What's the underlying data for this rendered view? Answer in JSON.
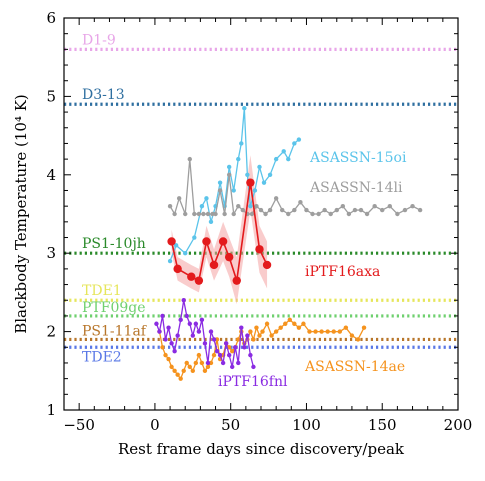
{
  "chart_data": {
    "type": "line",
    "title": "",
    "xlabel": "Rest frame days since discovery/peak",
    "ylabel": "Blackbody Temperature (10⁴ K)",
    "xlim": [
      -60,
      200
    ],
    "ylim": [
      1,
      6
    ],
    "xticks": [
      -50,
      0,
      50,
      100,
      150,
      200
    ],
    "yticks": [
      1,
      2,
      3,
      4,
      5,
      6
    ],
    "grid": false,
    "legend": "none",
    "reference_lines": [
      {
        "name": "D1-9",
        "y": 5.6,
        "color": "#e8a6e8"
      },
      {
        "name": "D3-13",
        "y": 4.9,
        "color": "#2f6fa0"
      },
      {
        "name": "PS1-10jh",
        "y": 3.0,
        "color": "#2a8a2a"
      },
      {
        "name": "TDE1",
        "y": 2.4,
        "color": "#e6e65c"
      },
      {
        "name": "PTF09ge",
        "y": 2.2,
        "color": "#6fd06f"
      },
      {
        "name": "PS1-11af",
        "y": 1.9,
        "color": "#b8762a"
      },
      {
        "name": "TDE2",
        "y": 1.8,
        "color": "#5a78e6"
      }
    ],
    "series": [
      {
        "name": "ASASSN-15oi",
        "color": "#5bc4ea",
        "x": [
          10,
          14,
          20,
          26,
          31,
          34,
          37,
          40,
          43,
          46,
          49,
          52,
          55,
          57,
          59,
          61,
          63,
          66,
          69,
          72,
          76,
          80,
          85,
          88,
          92,
          95
        ],
        "y": [
          2.9,
          3.1,
          3.0,
          3.2,
          3.6,
          3.7,
          3.4,
          3.6,
          3.9,
          3.6,
          4.1,
          3.8,
          4.2,
          4.4,
          4.85,
          4.0,
          3.6,
          3.8,
          4.1,
          3.9,
          4.0,
          4.2,
          4.3,
          4.2,
          4.4,
          4.45
        ]
      },
      {
        "name": "ASASSN-14li",
        "color": "#9e9e9e",
        "x": [
          10,
          13,
          16,
          20,
          23,
          26,
          29,
          32,
          35,
          38,
          40,
          43,
          46,
          49,
          52,
          55,
          58,
          61,
          64,
          67,
          70,
          73,
          76,
          80,
          84,
          88,
          92,
          96,
          100,
          104,
          108,
          112,
          116,
          120,
          124,
          128,
          132,
          136,
          140,
          145,
          150,
          155,
          160,
          165,
          170,
          175
        ],
        "y": [
          3.6,
          3.5,
          3.7,
          3.5,
          4.2,
          3.5,
          3.5,
          3.5,
          3.5,
          3.5,
          3.5,
          3.8,
          3.5,
          4.0,
          3.5,
          3.6,
          3.55,
          3.5,
          3.5,
          3.6,
          3.55,
          3.5,
          3.55,
          3.7,
          3.55,
          3.5,
          3.55,
          3.65,
          3.55,
          3.5,
          3.5,
          3.55,
          3.5,
          3.55,
          3.6,
          3.5,
          3.55,
          3.55,
          3.5,
          3.6,
          3.55,
          3.6,
          3.5,
          3.55,
          3.6,
          3.55
        ]
      },
      {
        "name": "iPTF16axa",
        "color": "#e31a1c",
        "band_color": "#f4a3a3",
        "x": [
          11,
          15,
          24,
          29,
          34,
          39,
          45,
          49,
          54,
          63,
          69,
          74
        ],
        "y": [
          3.15,
          2.8,
          2.7,
          2.65,
          3.15,
          2.85,
          3.15,
          2.95,
          2.65,
          3.9,
          3.05,
          2.85
        ]
      },
      {
        "name": "ASASSN-14ae",
        "color": "#f5931e",
        "x": [
          3,
          5,
          7,
          9,
          11,
          13,
          15,
          17,
          19,
          21,
          23,
          25,
          27,
          29,
          31,
          33,
          35,
          37,
          39,
          41,
          43,
          45,
          47,
          49,
          51,
          53,
          55,
          57,
          59,
          61,
          63,
          65,
          67,
          69,
          71,
          74,
          77,
          80,
          83,
          86,
          89,
          92,
          95,
          98,
          102,
          106,
          110,
          114,
          118,
          122,
          126,
          130,
          134,
          138
        ],
        "y": [
          2.0,
          1.8,
          1.7,
          1.65,
          1.55,
          1.5,
          1.45,
          1.4,
          1.5,
          1.6,
          1.55,
          1.5,
          1.6,
          1.7,
          1.6,
          1.5,
          1.55,
          1.6,
          1.7,
          1.9,
          1.65,
          1.7,
          1.85,
          1.8,
          1.75,
          1.8,
          1.9,
          2.0,
          1.85,
          1.9,
          2.0,
          1.9,
          2.05,
          1.95,
          2.0,
          2.1,
          1.95,
          2.0,
          2.05,
          2.1,
          2.15,
          2.1,
          2.05,
          2.1,
          2.0,
          2.0,
          2.0,
          2.0,
          2.0,
          2.0,
          2.05,
          1.95,
          1.9,
          2.05
        ]
      },
      {
        "name": "iPTF16fnl",
        "color": "#8a2be2",
        "x": [
          1,
          3,
          5,
          7,
          9,
          11,
          13,
          15,
          17,
          19,
          21,
          23,
          25,
          27,
          29,
          31,
          33,
          35,
          37,
          39,
          41,
          43,
          45,
          47,
          49,
          51,
          53,
          55,
          57,
          59,
          61,
          63,
          65
        ],
        "y": [
          2.1,
          2.0,
          2.2,
          1.9,
          2.05,
          1.85,
          1.75,
          1.95,
          2.15,
          2.4,
          2.2,
          2.1,
          1.95,
          2.1,
          2.0,
          2.15,
          1.85,
          1.6,
          2.0,
          1.9,
          1.75,
          1.7,
          1.6,
          1.85,
          1.7,
          1.55,
          1.8,
          1.6,
          2.05,
          1.8,
          1.95,
          1.7,
          1.55
        ]
      }
    ]
  }
}
